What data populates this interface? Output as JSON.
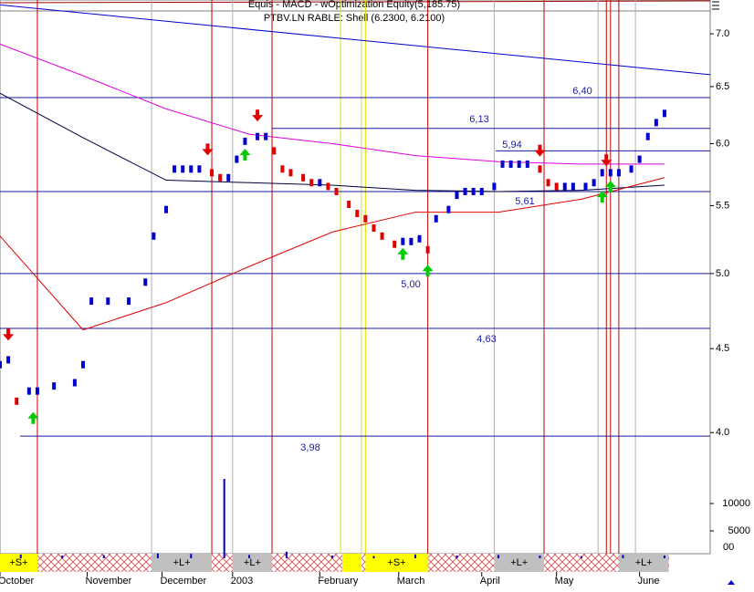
{
  "chart_data": {
    "type": "stock",
    "title": "Equis - MACD - wOptimization Equity(5,185.75)",
    "subtitle": "PTBV.LN RABLE: Shell (6.2300, 6.2100)",
    "xlim": [
      0,
      171
    ],
    "ylim": [
      3.87,
      7.34
    ],
    "log": true,
    "yticks": [
      {
        "value": 4,
        "label": "4.0"
      },
      {
        "value": 4.5,
        "label": "4.5"
      },
      {
        "value": 5,
        "label": "5.0"
      },
      {
        "value": 5.5,
        "label": "5.5"
      },
      {
        "value": 6,
        "label": "6.0"
      },
      {
        "value": 6.5,
        "label": "6.5"
      },
      {
        "value": 7,
        "label": "7.0"
      }
    ],
    "xticks": [
      {
        "value": 0,
        "label": "October"
      },
      {
        "value": 21,
        "label": "November"
      },
      {
        "value": 39,
        "label": "December"
      },
      {
        "value": 56,
        "label": "2003"
      },
      {
        "value": 77,
        "label": "February"
      },
      {
        "value": 96,
        "label": "March"
      },
      {
        "value": 116,
        "label": "April"
      },
      {
        "value": 134,
        "label": "May"
      },
      {
        "value": 154,
        "label": "June"
      }
    ],
    "color": "#0000cc",
    "down_color": "#e00000",
    "x": [
      0,
      2,
      4,
      7,
      9,
      13,
      18,
      20,
      22,
      26,
      31,
      35,
      37,
      40,
      42,
      44,
      46,
      48,
      51,
      53,
      55,
      57,
      59,
      62,
      64,
      66,
      68,
      70,
      73,
      75,
      77,
      79,
      81,
      84,
      86,
      88,
      90,
      92,
      95,
      97,
      99,
      101,
      103,
      105,
      108,
      110,
      112,
      114,
      116,
      119,
      121,
      123,
      125,
      127,
      130,
      132,
      134,
      136,
      138,
      141,
      143,
      145,
      147,
      149,
      152,
      154,
      156,
      158,
      160
    ],
    "close": [
      4.4,
      4.43,
      4.18,
      4.24,
      4.24,
      4.27,
      4.29,
      4.4,
      4.81,
      4.81,
      4.81,
      4.94,
      5.27,
      5.47,
      5.79,
      5.79,
      5.79,
      5.79,
      5.76,
      5.72,
      5.72,
      5.87,
      6.02,
      6.06,
      6.06,
      5.94,
      5.79,
      5.76,
      5.72,
      5.68,
      5.68,
      5.65,
      5.61,
      5.51,
      5.44,
      5.4,
      5.33,
      5.27,
      5.21,
      5.23,
      5.23,
      5.25,
      5.17,
      5.4,
      5.47,
      5.58,
      5.61,
      5.61,
      5.61,
      5.65,
      5.83,
      5.83,
      5.83,
      5.83,
      5.79,
      5.68,
      5.65,
      5.65,
      5.65,
      5.65,
      5.68,
      5.76,
      5.76,
      5.76,
      5.79,
      5.87,
      6.06,
      6.18,
      6.26
    ],
    "averages": [
      {
        "color": "#e000e0",
        "x": [
          0,
          20,
          40,
          60,
          80,
          100,
          120,
          140,
          160
        ],
        "values": [
          6.9,
          6.6,
          6.3,
          6.08,
          6.0,
          5.9,
          5.85,
          5.83,
          5.83
        ]
      },
      {
        "color": "#000040",
        "x": [
          0,
          20,
          40,
          60,
          80,
          100,
          120,
          140,
          160
        ],
        "values": [
          6.44,
          6.05,
          5.7,
          5.68,
          5.66,
          5.62,
          5.61,
          5.62,
          5.66
        ]
      },
      {
        "color": "#e00000",
        "x": [
          0,
          20,
          40,
          60,
          80,
          100,
          120,
          140,
          160
        ],
        "values": [
          5.27,
          4.62,
          4.8,
          5.05,
          5.3,
          5.45,
          5.45,
          5.55,
          5.72
        ]
      }
    ],
    "trend": {
      "color": "#0000cc",
      "x": [
        0,
        171
      ],
      "values": [
        7.29,
        6.61
      ]
    },
    "levels": [
      {
        "value": 6.4,
        "label": "6,40"
      },
      {
        "value": 6.13,
        "label": "6,13"
      },
      {
        "value": 5.94,
        "label": "5,94"
      },
      {
        "value": 5.61,
        "label": "5,61"
      },
      {
        "value": 5.0,
        "label": "5,00"
      },
      {
        "value": 4.63,
        "label": "4,63"
      },
      {
        "value": 3.98,
        "label": "3,98"
      }
    ],
    "sell_arrows": {
      "x": [
        2,
        50,
        62,
        130,
        146
      ],
      "values": [
        4.58,
        5.94,
        6.23,
        5.93,
        5.85
      ]
    },
    "buy_arrows": {
      "x": [
        8,
        59,
        97,
        103,
        145,
        147
      ],
      "values": [
        4.09,
        5.92,
        5.15,
        5.03,
        5.58,
        5.66
      ]
    },
    "red_lines": [
      9,
      51,
      65.5,
      103,
      131,
      146,
      147,
      149
    ],
    "yellow_lines": [
      82,
      87,
      88
    ],
    "gray_lines": [
      36.5,
      56,
      119,
      144,
      153
    ],
    "signals": [
      {
        "label": "+S+",
        "start": 0,
        "end": 9
      },
      {
        "label": "+L+",
        "start": 36.5,
        "end": 51
      },
      {
        "label": "+L+",
        "start": 56,
        "end": 65.5
      },
      {
        "label": "+S+",
        "start": 88,
        "end": 103
      },
      {
        "label": "+L+",
        "start": 119,
        "end": 131
      },
      {
        "label": "+L+",
        "start": 149,
        "end": 161
      }
    ],
    "volume": {
      "color": "#0000cc",
      "x": [
        5,
        15,
        25,
        38,
        46,
        54,
        60,
        69,
        80,
        90,
        100,
        110,
        120,
        130,
        140,
        150,
        160
      ],
      "values": [
        700,
        500,
        600,
        900,
        800,
        14500,
        600,
        1200,
        500,
        400,
        700,
        500,
        600,
        500,
        400,
        600,
        500
      ]
    },
    "y2lim": [
      0,
      18000
    ],
    "y2ticks": [
      5000,
      10000
    ],
    "corner_label": "00"
  }
}
